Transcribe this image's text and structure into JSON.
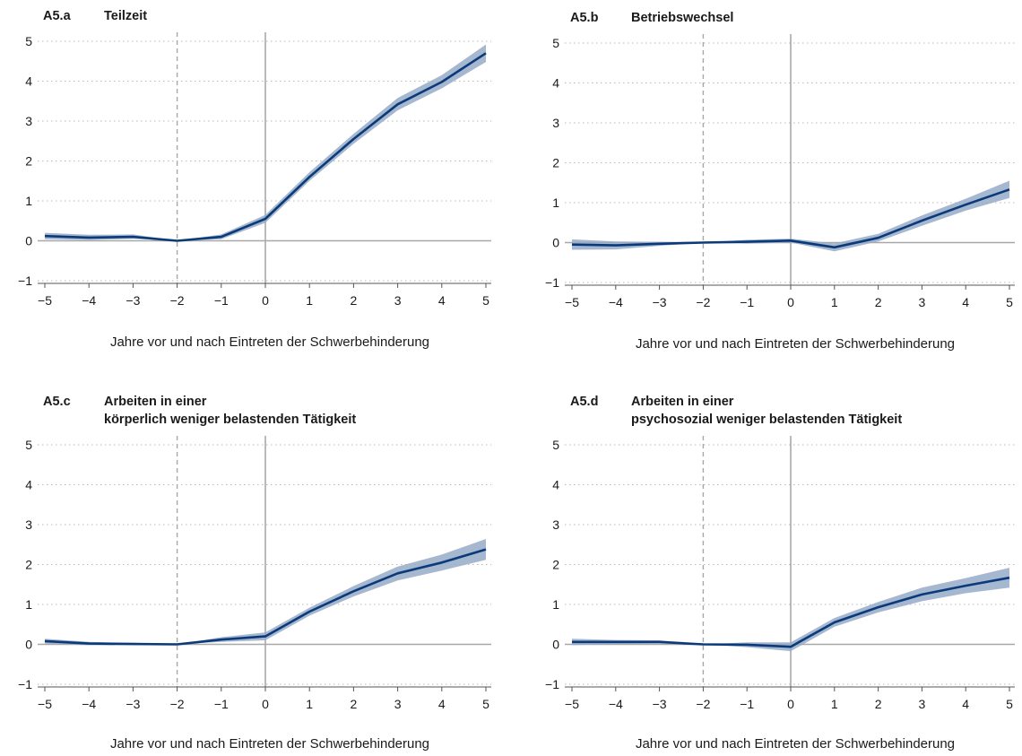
{
  "chart_data": [
    {
      "type": "line",
      "panel_id": "A5.a",
      "title": [
        "Teilzeit"
      ],
      "xlabel": "Jahre vor und nach Eintreten der Schwerbehinderung",
      "ylabel": "",
      "xlim": [
        -5,
        5
      ],
      "ylim": [
        -1,
        5
      ],
      "x_ticks": [
        -5,
        -4,
        -3,
        -2,
        -1,
        0,
        1,
        2,
        3,
        4,
        5
      ],
      "y_ticks": [
        -1,
        0,
        1,
        2,
        3,
        4,
        5
      ],
      "reference_lines": {
        "x_solid": 0,
        "x_dashed": -2,
        "y_solid": 0
      },
      "grid": "horizontal dotted",
      "line_color": "#0b3a7a",
      "band_color": "#97aac8",
      "x": [
        -5,
        -4,
        -3,
        -2,
        -1,
        0,
        1,
        2,
        3,
        4,
        5
      ],
      "series": [
        {
          "values": [
            0.12,
            0.08,
            0.1,
            0.0,
            0.1,
            0.55,
            1.6,
            2.55,
            3.42,
            3.98,
            4.7
          ],
          "lower": [
            0.04,
            0.02,
            0.05,
            0.0,
            0.04,
            0.45,
            1.5,
            2.43,
            3.27,
            3.82,
            4.48
          ],
          "upper": [
            0.2,
            0.15,
            0.16,
            0.0,
            0.16,
            0.65,
            1.72,
            2.68,
            3.58,
            4.15,
            4.92
          ]
        }
      ]
    },
    {
      "type": "line",
      "panel_id": "A5.b",
      "title": [
        "Betriebswechsel"
      ],
      "xlabel": "Jahre vor und nach Eintreten der Schwerbehinderung",
      "ylabel": "",
      "xlim": [
        -5,
        5
      ],
      "ylim": [
        -1,
        5
      ],
      "x_ticks": [
        -5,
        -4,
        -3,
        -2,
        -1,
        0,
        1,
        2,
        3,
        4,
        5
      ],
      "y_ticks": [
        -1,
        0,
        1,
        2,
        3,
        4,
        5
      ],
      "reference_lines": {
        "x_solid": 0,
        "x_dashed": -2,
        "y_solid": 0
      },
      "grid": "horizontal dotted",
      "line_color": "#0b3a7a",
      "band_color": "#97aac8",
      "x": [
        -5,
        -4,
        -3,
        -2,
        -1,
        0,
        1,
        2,
        3,
        4,
        5
      ],
      "series": [
        {
          "values": [
            -0.05,
            -0.07,
            -0.03,
            0.0,
            0.02,
            0.05,
            -0.12,
            0.12,
            0.55,
            0.95,
            1.33
          ],
          "lower": [
            -0.18,
            -0.17,
            -0.08,
            0.0,
            -0.03,
            0.0,
            -0.22,
            0.03,
            0.42,
            0.8,
            1.12
          ],
          "upper": [
            0.08,
            0.03,
            0.02,
            0.0,
            0.07,
            0.1,
            -0.02,
            0.22,
            0.68,
            1.1,
            1.55
          ]
        }
      ]
    },
    {
      "type": "line",
      "panel_id": "A5.c",
      "title": [
        "Arbeiten in einer",
        "körperlich weniger belastenden Tätigkeit"
      ],
      "xlabel": "Jahre vor und nach Eintreten der Schwerbehinderung",
      "ylabel": "",
      "xlim": [
        -5,
        5
      ],
      "ylim": [
        -1,
        5
      ],
      "x_ticks": [
        -5,
        -4,
        -3,
        -2,
        -1,
        0,
        1,
        2,
        3,
        4,
        5
      ],
      "y_ticks": [
        -1,
        0,
        1,
        2,
        3,
        4,
        5
      ],
      "reference_lines": {
        "x_solid": 0,
        "x_dashed": -2,
        "y_solid": 0
      },
      "grid": "horizontal dotted",
      "line_color": "#0b3a7a",
      "band_color": "#97aac8",
      "x": [
        -5,
        -4,
        -3,
        -2,
        -1,
        0,
        1,
        2,
        3,
        4,
        5
      ],
      "series": [
        {
          "values": [
            0.08,
            0.02,
            0.01,
            0.0,
            0.12,
            0.2,
            0.82,
            1.33,
            1.78,
            2.05,
            2.38
          ],
          "lower": [
            0.02,
            -0.02,
            -0.02,
            0.0,
            0.06,
            0.1,
            0.72,
            1.2,
            1.6,
            1.85,
            2.12
          ],
          "upper": [
            0.14,
            0.06,
            0.04,
            0.0,
            0.18,
            0.3,
            0.92,
            1.46,
            1.95,
            2.25,
            2.64
          ]
        }
      ]
    },
    {
      "type": "line",
      "panel_id": "A5.d",
      "title": [
        "Arbeiten in einer",
        "psychosozial weniger belastenden Tätigkeit"
      ],
      "xlabel": "Jahre vor und nach Eintreten der Schwerbehinderung",
      "ylabel": "",
      "xlim": [
        -5,
        5
      ],
      "ylim": [
        -1,
        5
      ],
      "x_ticks": [
        -5,
        -4,
        -3,
        -2,
        -1,
        0,
        1,
        2,
        3,
        4,
        5
      ],
      "y_ticks": [
        -1,
        0,
        1,
        2,
        3,
        4,
        5
      ],
      "reference_lines": {
        "x_solid": 0,
        "x_dashed": -2,
        "y_solid": 0
      },
      "grid": "horizontal dotted",
      "line_color": "#0b3a7a",
      "band_color": "#97aac8",
      "x": [
        -5,
        -4,
        -3,
        -2,
        -1,
        0,
        1,
        2,
        3,
        4,
        5
      ],
      "series": [
        {
          "values": [
            0.06,
            0.06,
            0.06,
            0.0,
            -0.01,
            -0.06,
            0.55,
            0.93,
            1.25,
            1.47,
            1.67
          ],
          "lower": [
            -0.02,
            0.01,
            0.02,
            0.0,
            -0.07,
            -0.17,
            0.44,
            0.8,
            1.08,
            1.28,
            1.42
          ],
          "upper": [
            0.14,
            0.11,
            0.1,
            0.0,
            0.05,
            0.05,
            0.66,
            1.06,
            1.42,
            1.66,
            1.92
          ]
        }
      ]
    }
  ]
}
